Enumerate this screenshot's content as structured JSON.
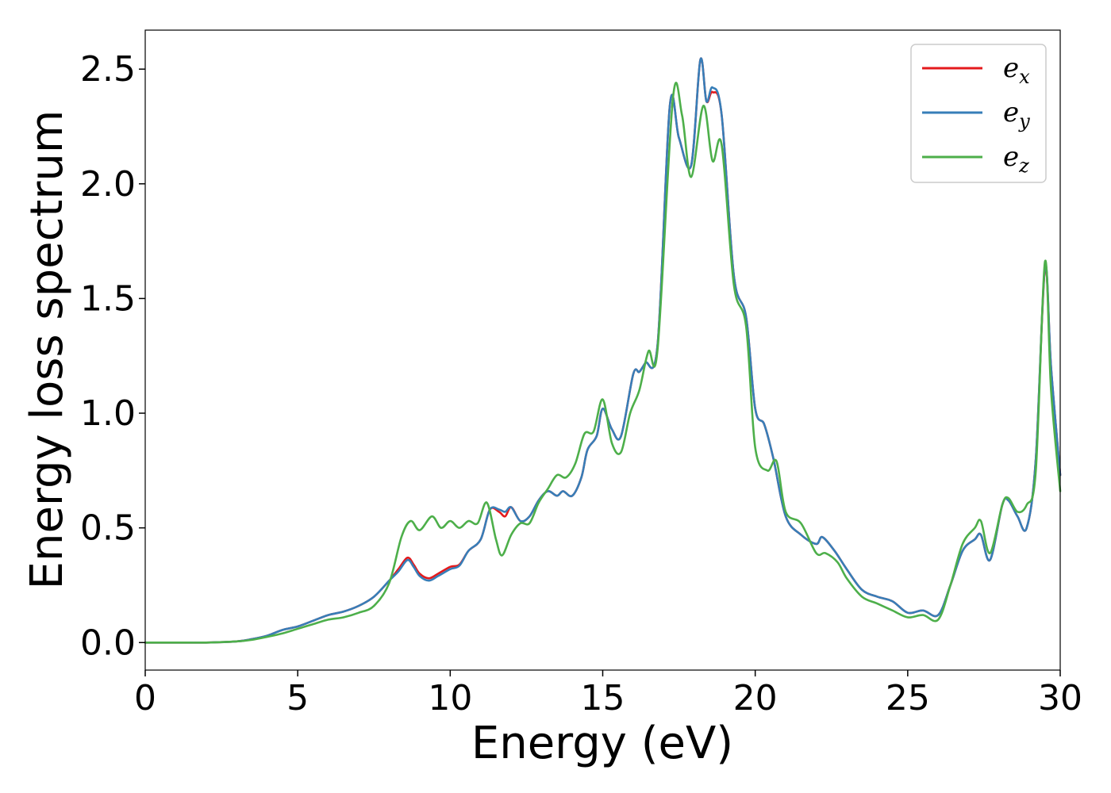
{
  "chart_data": {
    "type": "line",
    "title": "",
    "xlabel": "Energy (eV)",
    "ylabel": "Energy loss spectrum",
    "xlim": [
      0,
      30
    ],
    "ylim": [
      -0.12,
      2.67
    ],
    "xticks": [
      "0",
      "5",
      "10",
      "15",
      "20",
      "25",
      "30"
    ],
    "yticks": [
      "0.0",
      "0.5",
      "1.0",
      "1.5",
      "2.0",
      "2.5"
    ],
    "xtick_values": [
      0,
      5,
      10,
      15,
      20,
      25,
      30
    ],
    "ytick_values": [
      0.0,
      0.5,
      1.0,
      1.5,
      2.0,
      2.5
    ],
    "grid": false,
    "legend_position": "top-right",
    "series": [
      {
        "name": "e_x",
        "label_base": "e",
        "label_sub": "x",
        "color": "#e41a1c",
        "points": [
          [
            0,
            0
          ],
          [
            1,
            0
          ],
          [
            2,
            0
          ],
          [
            3,
            0.005
          ],
          [
            3.5,
            0.015
          ],
          [
            4,
            0.03
          ],
          [
            4.5,
            0.055
          ],
          [
            5,
            0.07
          ],
          [
            5.5,
            0.095
          ],
          [
            6,
            0.12
          ],
          [
            6.5,
            0.135
          ],
          [
            7,
            0.16
          ],
          [
            7.5,
            0.2
          ],
          [
            8,
            0.27
          ],
          [
            8.3,
            0.32
          ],
          [
            8.6,
            0.37
          ],
          [
            8.8,
            0.34
          ],
          [
            9,
            0.3
          ],
          [
            9.3,
            0.28
          ],
          [
            9.6,
            0.3
          ],
          [
            10,
            0.33
          ],
          [
            10.3,
            0.34
          ],
          [
            10.6,
            0.4
          ],
          [
            11,
            0.45
          ],
          [
            11.3,
            0.58
          ],
          [
            11.6,
            0.57
          ],
          [
            11.8,
            0.55
          ],
          [
            12,
            0.59
          ],
          [
            12.3,
            0.53
          ],
          [
            12.6,
            0.55
          ],
          [
            12.9,
            0.62
          ],
          [
            13.2,
            0.66
          ],
          [
            13.5,
            0.64
          ],
          [
            13.7,
            0.66
          ],
          [
            14,
            0.64
          ],
          [
            14.3,
            0.72
          ],
          [
            14.5,
            0.84
          ],
          [
            14.8,
            0.9
          ],
          [
            15,
            1.02
          ],
          [
            15.3,
            0.93
          ],
          [
            15.6,
            0.9
          ],
          [
            16,
            1.17
          ],
          [
            16.2,
            1.18
          ],
          [
            16.4,
            1.22
          ],
          [
            16.8,
            1.3
          ],
          [
            17.2,
            2.34
          ],
          [
            17.5,
            2.2
          ],
          [
            17.9,
            2.08
          ],
          [
            18.2,
            2.54
          ],
          [
            18.4,
            2.36
          ],
          [
            18.6,
            2.4
          ],
          [
            18.9,
            2.3
          ],
          [
            19.3,
            1.6
          ],
          [
            19.7,
            1.42
          ],
          [
            20,
            1.02
          ],
          [
            20.3,
            0.95
          ],
          [
            20.6,
            0.8
          ],
          [
            21,
            0.55
          ],
          [
            21.5,
            0.47
          ],
          [
            22,
            0.43
          ],
          [
            22.2,
            0.46
          ],
          [
            22.6,
            0.4
          ],
          [
            23,
            0.32
          ],
          [
            23.5,
            0.23
          ],
          [
            24,
            0.2
          ],
          [
            24.5,
            0.18
          ],
          [
            25,
            0.13
          ],
          [
            25.5,
            0.14
          ],
          [
            26,
            0.12
          ],
          [
            26.4,
            0.25
          ],
          [
            26.8,
            0.4
          ],
          [
            27.2,
            0.45
          ],
          [
            27.4,
            0.47
          ],
          [
            27.7,
            0.36
          ],
          [
            28.1,
            0.6
          ],
          [
            28.3,
            0.62
          ],
          [
            28.6,
            0.55
          ],
          [
            28.9,
            0.5
          ],
          [
            29.2,
            0.8
          ],
          [
            29.5,
            1.63
          ],
          [
            29.7,
            1.2
          ],
          [
            30,
            0.73
          ]
        ]
      },
      {
        "name": "e_y",
        "label_base": "e",
        "label_sub": "y",
        "color": "#377eb8",
        "points": [
          [
            0,
            0
          ],
          [
            1,
            0
          ],
          [
            2,
            0
          ],
          [
            3,
            0.005
          ],
          [
            3.5,
            0.015
          ],
          [
            4,
            0.03
          ],
          [
            4.5,
            0.055
          ],
          [
            5,
            0.07
          ],
          [
            5.5,
            0.095
          ],
          [
            6,
            0.12
          ],
          [
            6.5,
            0.135
          ],
          [
            7,
            0.16
          ],
          [
            7.5,
            0.2
          ],
          [
            8,
            0.27
          ],
          [
            8.3,
            0.31
          ],
          [
            8.6,
            0.36
          ],
          [
            8.8,
            0.33
          ],
          [
            9,
            0.29
          ],
          [
            9.3,
            0.27
          ],
          [
            9.6,
            0.29
          ],
          [
            10,
            0.32
          ],
          [
            10.3,
            0.335
          ],
          [
            10.6,
            0.4
          ],
          [
            11,
            0.45
          ],
          [
            11.3,
            0.58
          ],
          [
            11.6,
            0.58
          ],
          [
            11.8,
            0.57
          ],
          [
            12,
            0.59
          ],
          [
            12.3,
            0.53
          ],
          [
            12.6,
            0.55
          ],
          [
            12.9,
            0.62
          ],
          [
            13.2,
            0.66
          ],
          [
            13.5,
            0.64
          ],
          [
            13.7,
            0.66
          ],
          [
            14,
            0.64
          ],
          [
            14.3,
            0.72
          ],
          [
            14.5,
            0.84
          ],
          [
            14.8,
            0.9
          ],
          [
            15,
            1.02
          ],
          [
            15.3,
            0.93
          ],
          [
            15.6,
            0.9
          ],
          [
            16,
            1.17
          ],
          [
            16.2,
            1.18
          ],
          [
            16.4,
            1.22
          ],
          [
            16.8,
            1.3
          ],
          [
            17.2,
            2.34
          ],
          [
            17.5,
            2.2
          ],
          [
            17.9,
            2.08
          ],
          [
            18.2,
            2.54
          ],
          [
            18.4,
            2.36
          ],
          [
            18.6,
            2.42
          ],
          [
            18.9,
            2.3
          ],
          [
            19.3,
            1.6
          ],
          [
            19.7,
            1.42
          ],
          [
            20,
            1.02
          ],
          [
            20.3,
            0.95
          ],
          [
            20.6,
            0.8
          ],
          [
            21,
            0.55
          ],
          [
            21.5,
            0.47
          ],
          [
            22,
            0.43
          ],
          [
            22.2,
            0.46
          ],
          [
            22.6,
            0.4
          ],
          [
            23,
            0.32
          ],
          [
            23.5,
            0.23
          ],
          [
            24,
            0.2
          ],
          [
            24.5,
            0.18
          ],
          [
            25,
            0.13
          ],
          [
            25.5,
            0.14
          ],
          [
            26,
            0.12
          ],
          [
            26.4,
            0.25
          ],
          [
            26.8,
            0.4
          ],
          [
            27.2,
            0.45
          ],
          [
            27.4,
            0.47
          ],
          [
            27.7,
            0.36
          ],
          [
            28.1,
            0.6
          ],
          [
            28.3,
            0.62
          ],
          [
            28.6,
            0.55
          ],
          [
            28.9,
            0.5
          ],
          [
            29.2,
            0.8
          ],
          [
            29.5,
            1.64
          ],
          [
            29.7,
            1.2
          ],
          [
            30,
            0.73
          ]
        ]
      },
      {
        "name": "e_z",
        "label_base": "e",
        "label_sub": "z",
        "color": "#4daf4a",
        "points": [
          [
            0,
            0
          ],
          [
            1,
            0
          ],
          [
            2,
            0
          ],
          [
            3,
            0.005
          ],
          [
            3.5,
            0.012
          ],
          [
            4,
            0.025
          ],
          [
            4.5,
            0.04
          ],
          [
            5,
            0.06
          ],
          [
            5.5,
            0.08
          ],
          [
            6,
            0.1
          ],
          [
            6.5,
            0.11
          ],
          [
            7,
            0.13
          ],
          [
            7.5,
            0.16
          ],
          [
            8,
            0.26
          ],
          [
            8.4,
            0.46
          ],
          [
            8.7,
            0.53
          ],
          [
            9,
            0.49
          ],
          [
            9.4,
            0.55
          ],
          [
            9.7,
            0.5
          ],
          [
            10,
            0.53
          ],
          [
            10.3,
            0.5
          ],
          [
            10.6,
            0.53
          ],
          [
            10.9,
            0.52
          ],
          [
            11.2,
            0.61
          ],
          [
            11.5,
            0.45
          ],
          [
            11.7,
            0.38
          ],
          [
            12,
            0.47
          ],
          [
            12.3,
            0.52
          ],
          [
            12.6,
            0.52
          ],
          [
            12.9,
            0.61
          ],
          [
            13.2,
            0.67
          ],
          [
            13.5,
            0.73
          ],
          [
            13.8,
            0.72
          ],
          [
            14.1,
            0.78
          ],
          [
            14.4,
            0.91
          ],
          [
            14.7,
            0.92
          ],
          [
            15,
            1.06
          ],
          [
            15.3,
            0.87
          ],
          [
            15.6,
            0.83
          ],
          [
            15.9,
            1.0
          ],
          [
            16.2,
            1.1
          ],
          [
            16.5,
            1.27
          ],
          [
            16.8,
            1.28
          ],
          [
            17.3,
            2.37
          ],
          [
            17.6,
            2.3
          ],
          [
            17.9,
            2.03
          ],
          [
            18.3,
            2.34
          ],
          [
            18.6,
            2.1
          ],
          [
            18.9,
            2.17
          ],
          [
            19.3,
            1.56
          ],
          [
            19.7,
            1.38
          ],
          [
            20,
            0.85
          ],
          [
            20.4,
            0.75
          ],
          [
            20.7,
            0.79
          ],
          [
            21,
            0.57
          ],
          [
            21.5,
            0.52
          ],
          [
            22,
            0.39
          ],
          [
            22.3,
            0.39
          ],
          [
            22.7,
            0.35
          ],
          [
            23,
            0.28
          ],
          [
            23.5,
            0.2
          ],
          [
            24,
            0.17
          ],
          [
            24.5,
            0.14
          ],
          [
            25,
            0.11
          ],
          [
            25.5,
            0.12
          ],
          [
            26,
            0.1
          ],
          [
            26.4,
            0.25
          ],
          [
            26.8,
            0.43
          ],
          [
            27.2,
            0.5
          ],
          [
            27.4,
            0.53
          ],
          [
            27.7,
            0.39
          ],
          [
            28.1,
            0.6
          ],
          [
            28.3,
            0.63
          ],
          [
            28.6,
            0.57
          ],
          [
            28.9,
            0.6
          ],
          [
            29.2,
            0.75
          ],
          [
            29.5,
            1.66
          ],
          [
            29.7,
            1.1
          ],
          [
            30,
            0.66
          ]
        ]
      }
    ]
  }
}
